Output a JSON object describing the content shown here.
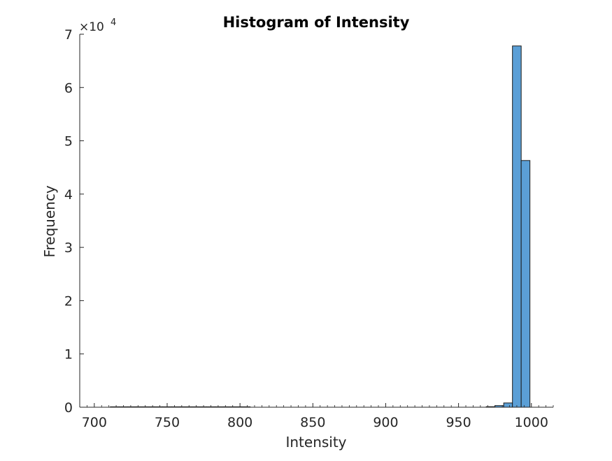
{
  "chart_data": {
    "type": "bar",
    "title": "Histogram of Intensity",
    "xlabel": "Intensity",
    "ylabel": "Frequency",
    "exponent_base": "×10",
    "exponent_power": "4",
    "xlim": [
      690,
      1015
    ],
    "ylim": [
      0,
      70000
    ],
    "xticks": [
      700,
      750,
      800,
      850,
      900,
      950,
      1000
    ],
    "yticks": [
      0,
      10000,
      20000,
      30000,
      40000,
      50000,
      60000,
      70000
    ],
    "ytick_labels": [
      "0",
      "1",
      "2",
      "3",
      "4",
      "5",
      "6",
      "7"
    ],
    "bin_width": 6,
    "bins": [
      {
        "x0": 711,
        "x1": 717,
        "count": 30
      },
      {
        "x0": 717,
        "x1": 723,
        "count": 25
      },
      {
        "x0": 723,
        "x1": 729,
        "count": 25
      },
      {
        "x0": 729,
        "x1": 735,
        "count": 25
      },
      {
        "x0": 735,
        "x1": 741,
        "count": 25
      },
      {
        "x0": 741,
        "x1": 747,
        "count": 25
      },
      {
        "x0": 747,
        "x1": 753,
        "count": 25
      },
      {
        "x0": 753,
        "x1": 759,
        "count": 25
      },
      {
        "x0": 759,
        "x1": 765,
        "count": 25
      },
      {
        "x0": 765,
        "x1": 771,
        "count": 25
      },
      {
        "x0": 771,
        "x1": 777,
        "count": 25
      },
      {
        "x0": 777,
        "x1": 783,
        "count": 25
      },
      {
        "x0": 783,
        "x1": 789,
        "count": 25
      },
      {
        "x0": 789,
        "x1": 795,
        "count": 25
      },
      {
        "x0": 795,
        "x1": 801,
        "count": 25
      },
      {
        "x0": 801,
        "x1": 807,
        "count": 20
      },
      {
        "x0": 969,
        "x1": 975,
        "count": 100
      },
      {
        "x0": 975,
        "x1": 981,
        "count": 300
      },
      {
        "x0": 981,
        "x1": 987,
        "count": 800
      },
      {
        "x0": 987,
        "x1": 993,
        "count": 67800
      },
      {
        "x0": 993,
        "x1": 999,
        "count": 46300
      }
    ],
    "bar_color": "#5b9fd6",
    "bar_edge_color": "#1a1a1a",
    "grid": false
  }
}
